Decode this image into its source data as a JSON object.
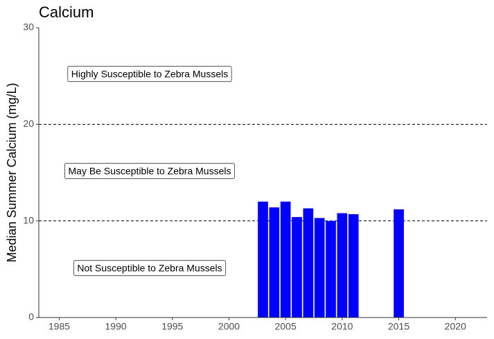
{
  "chart_data": {
    "type": "bar",
    "title": "Calcium",
    "ylabel": "Median Summer Calcium (mg/L)",
    "x": [
      2003,
      2004,
      2005,
      2006,
      2007,
      2008,
      2009,
      2010,
      2011,
      2015
    ],
    "values": [
      12.0,
      11.4,
      12.0,
      10.4,
      11.3,
      10.3,
      10.0,
      10.8,
      10.7,
      11.2
    ],
    "color": "#0000ff",
    "xlim": [
      1983.2,
      2022.8
    ],
    "xticks": [
      1985,
      1990,
      1995,
      2000,
      2005,
      2010,
      2015,
      2020
    ],
    "ylim": [
      0,
      30
    ],
    "yticks": [
      0,
      10,
      20,
      30
    ],
    "hlines": [
      20,
      10
    ],
    "annotations": [
      "Highly Susceptible to Zebra Mussels",
      "May Be Susceptible to Zebra Mussels",
      "Not Susceptible to Zebra Mussels"
    ],
    "grid": false
  }
}
